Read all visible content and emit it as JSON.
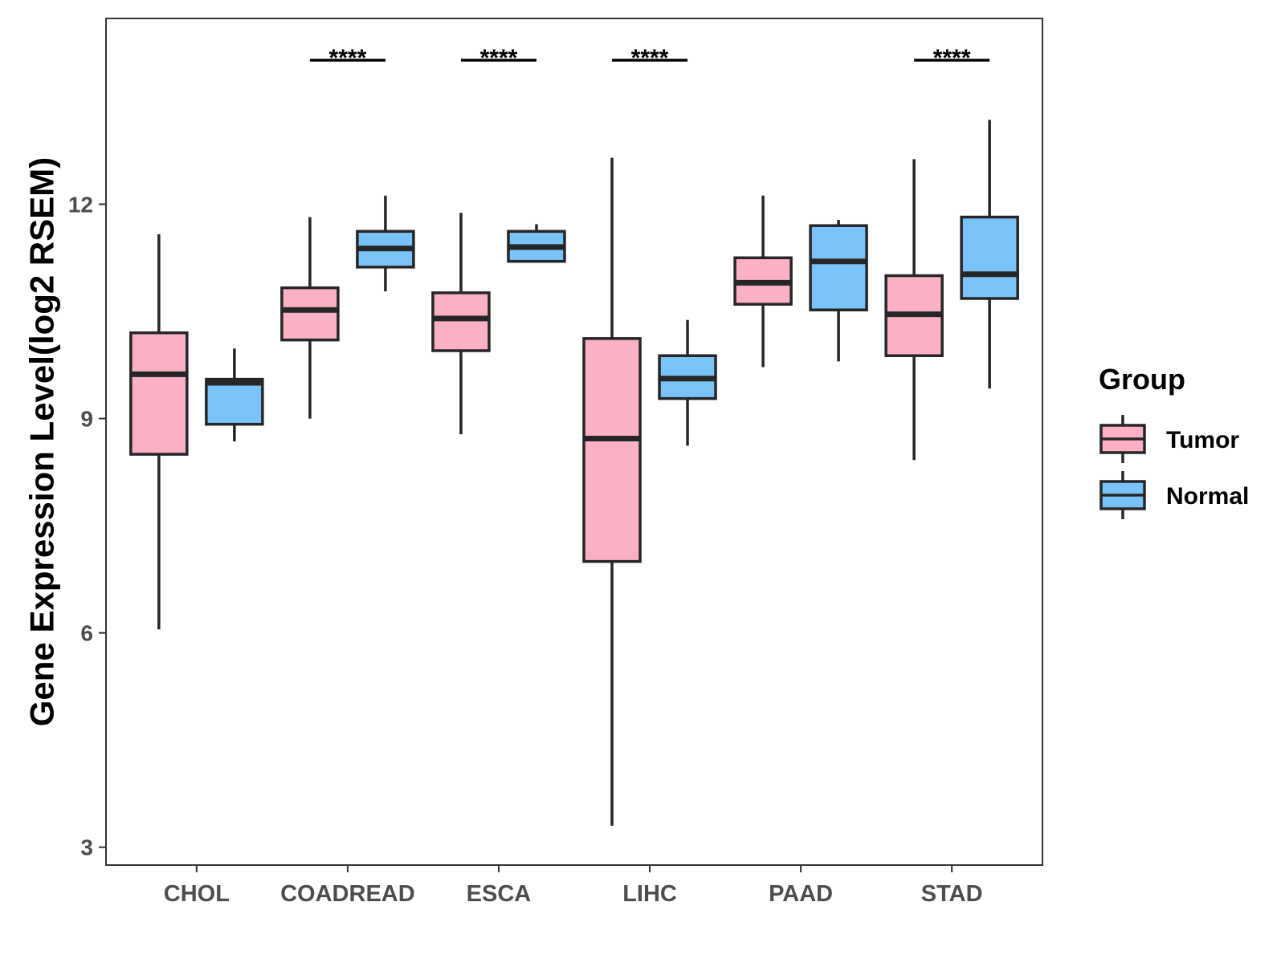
{
  "chart_data": {
    "type": "boxplot",
    "ylabel": "Gene Expression Level(log2 RSEM)",
    "xlabel": "",
    "ylim": [
      2.75,
      14.6
    ],
    "yticks": [
      3,
      6,
      9,
      12
    ],
    "categories": [
      "CHOL",
      "COADREAD",
      "ESCA",
      "LIHC",
      "PAAD",
      "STAD"
    ],
    "legend": {
      "title": "Group",
      "position": "right",
      "entries": [
        {
          "name": "Tumor",
          "color": "#FBB1C3"
        },
        {
          "name": "Normal",
          "color": "#7AC3F8"
        }
      ]
    },
    "series": [
      {
        "name": "Tumor",
        "color": "#FBB1C3",
        "boxes": [
          {
            "min": 6.05,
            "q1": 8.5,
            "median": 9.62,
            "q3": 10.2,
            "max": 11.58
          },
          {
            "min": 9.0,
            "q1": 10.1,
            "median": 10.52,
            "q3": 10.83,
            "max": 11.82
          },
          {
            "min": 8.78,
            "q1": 9.95,
            "median": 10.4,
            "q3": 10.76,
            "max": 11.88
          },
          {
            "min": 3.3,
            "q1": 7.0,
            "median": 8.72,
            "q3": 10.12,
            "max": 12.65
          },
          {
            "min": 9.72,
            "q1": 10.6,
            "median": 10.9,
            "q3": 11.25,
            "max": 12.12
          },
          {
            "min": 8.42,
            "q1": 9.88,
            "median": 10.46,
            "q3": 11.0,
            "max": 12.63
          }
        ]
      },
      {
        "name": "Normal",
        "color": "#7AC3F8",
        "boxes": [
          {
            "min": 8.68,
            "q1": 8.92,
            "median": 9.5,
            "q3": 9.55,
            "max": 9.98
          },
          {
            "min": 10.78,
            "q1": 11.12,
            "median": 11.38,
            "q3": 11.62,
            "max": 12.12
          },
          {
            "min": 11.2,
            "q1": 11.2,
            "median": 11.4,
            "q3": 11.62,
            "max": 11.72
          },
          {
            "min": 8.62,
            "q1": 9.28,
            "median": 9.56,
            "q3": 9.88,
            "max": 10.38
          },
          {
            "min": 9.8,
            "q1": 10.52,
            "median": 11.2,
            "q3": 11.7,
            "max": 11.78
          },
          {
            "min": 9.42,
            "q1": 10.68,
            "median": 11.02,
            "q3": 11.82,
            "max": 13.18
          }
        ]
      }
    ],
    "significance": [
      {
        "category": "COADREAD",
        "label": "****"
      },
      {
        "category": "ESCA",
        "label": "****"
      },
      {
        "category": "LIHC",
        "label": "****"
      },
      {
        "category": "STAD",
        "label": "****"
      }
    ]
  }
}
